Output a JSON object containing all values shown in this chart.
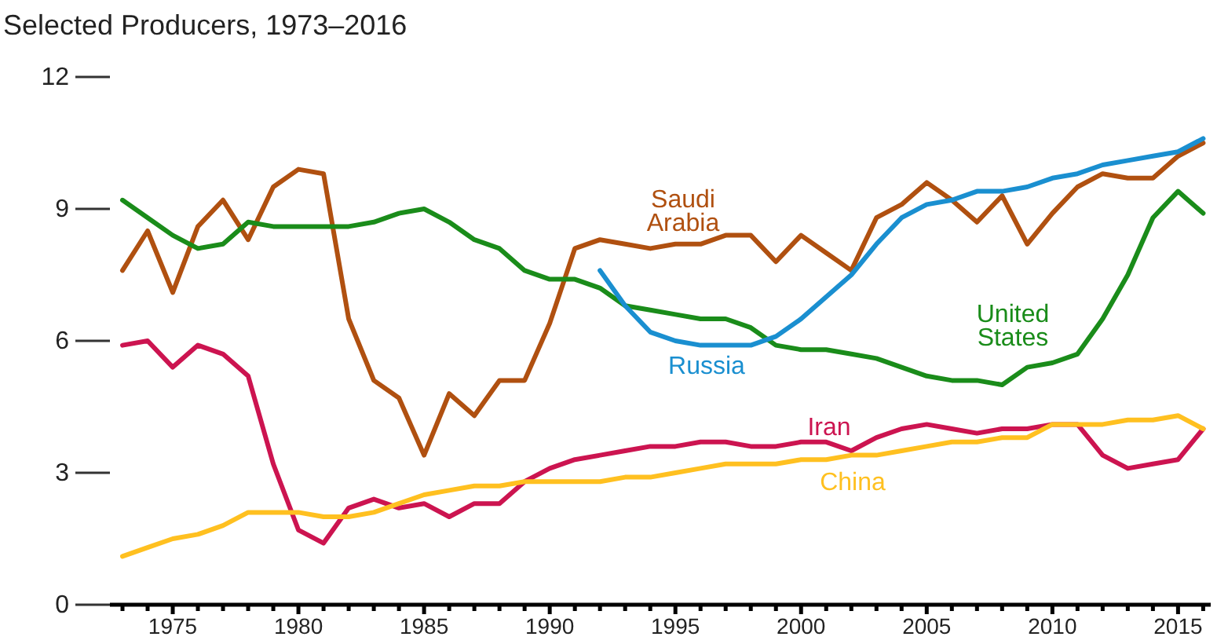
{
  "chart_data": {
    "type": "line",
    "title": "Selected Producers, 1973–2016",
    "x": [
      1973,
      1974,
      1975,
      1976,
      1977,
      1978,
      1979,
      1980,
      1981,
      1982,
      1983,
      1984,
      1985,
      1986,
      1987,
      1988,
      1989,
      1990,
      1991,
      1992,
      1993,
      1994,
      1995,
      1996,
      1997,
      1998,
      1999,
      2000,
      2001,
      2002,
      2003,
      2004,
      2005,
      2006,
      2007,
      2008,
      2009,
      2010,
      2011,
      2012,
      2013,
      2014,
      2015,
      2016
    ],
    "series": [
      {
        "name": "Saudi Arabia",
        "color": "#b05010",
        "values": [
          7.6,
          8.5,
          7.1,
          8.6,
          9.2,
          8.3,
          9.5,
          9.9,
          9.8,
          6.5,
          5.1,
          4.7,
          3.4,
          4.8,
          4.3,
          5.1,
          5.1,
          6.4,
          8.1,
          8.3,
          8.2,
          8.1,
          8.2,
          8.2,
          8.4,
          8.4,
          7.8,
          8.4,
          8.0,
          7.6,
          8.8,
          9.1,
          9.6,
          9.2,
          8.7,
          9.3,
          8.2,
          8.9,
          9.5,
          9.8,
          9.7,
          9.7,
          10.2,
          10.5
        ]
      },
      {
        "name": "United States",
        "color": "#1a8c1a",
        "values": [
          9.2,
          8.8,
          8.4,
          8.1,
          8.2,
          8.7,
          8.6,
          8.6,
          8.6,
          8.6,
          8.7,
          8.9,
          9.0,
          8.7,
          8.3,
          8.1,
          7.6,
          7.4,
          7.4,
          7.2,
          6.8,
          6.7,
          6.6,
          6.5,
          6.5,
          6.3,
          5.9,
          5.8,
          5.8,
          5.7,
          5.6,
          5.4,
          5.2,
          5.1,
          5.1,
          5.0,
          5.4,
          5.5,
          5.7,
          6.5,
          7.5,
          8.8,
          9.4,
          8.9
        ]
      },
      {
        "name": "Russia",
        "color": "#1a8fd0",
        "values": [
          null,
          null,
          null,
          null,
          null,
          null,
          null,
          null,
          null,
          null,
          null,
          null,
          null,
          null,
          null,
          null,
          null,
          null,
          null,
          7.6,
          6.8,
          6.2,
          6.0,
          5.9,
          5.9,
          5.9,
          6.1,
          6.5,
          7.0,
          7.5,
          8.2,
          8.8,
          9.1,
          9.2,
          9.4,
          9.4,
          9.5,
          9.7,
          9.8,
          10.0,
          10.1,
          10.2,
          10.3,
          10.6
        ]
      },
      {
        "name": "Iran",
        "color": "#cc1450",
        "values": [
          5.9,
          6.0,
          5.4,
          5.9,
          5.7,
          5.2,
          3.2,
          1.7,
          1.4,
          2.2,
          2.4,
          2.2,
          2.3,
          2.0,
          2.3,
          2.3,
          2.8,
          3.1,
          3.3,
          3.4,
          3.5,
          3.6,
          3.6,
          3.7,
          3.7,
          3.6,
          3.6,
          3.7,
          3.7,
          3.5,
          3.8,
          4.0,
          4.1,
          4.0,
          3.9,
          4.0,
          4.0,
          4.1,
          4.1,
          3.4,
          3.1,
          3.2,
          3.3,
          4.0
        ]
      },
      {
        "name": "China",
        "color": "#ffc020",
        "values": [
          1.1,
          1.3,
          1.5,
          1.6,
          1.8,
          2.1,
          2.1,
          2.1,
          2.0,
          2.0,
          2.1,
          2.3,
          2.5,
          2.6,
          2.7,
          2.7,
          2.8,
          2.8,
          2.8,
          2.8,
          2.9,
          2.9,
          3.0,
          3.1,
          3.2,
          3.2,
          3.2,
          3.3,
          3.3,
          3.4,
          3.4,
          3.5,
          3.6,
          3.7,
          3.7,
          3.8,
          3.8,
          4.1,
          4.1,
          4.1,
          4.2,
          4.2,
          4.3,
          4.0
        ]
      }
    ],
    "xlim": [
      1972.5,
      2016.3
    ],
    "xticks": [
      {
        "value": 1973,
        "label": null
      },
      {
        "value": 1974,
        "label": null
      },
      1975,
      {
        "value": 1976,
        "label": null
      },
      {
        "value": 1977,
        "label": null
      },
      {
        "value": 1978,
        "label": null
      },
      {
        "value": 1979,
        "label": null
      },
      1980,
      {
        "value": 1981,
        "label": null
      },
      {
        "value": 1982,
        "label": null
      },
      {
        "value": 1983,
        "label": null
      },
      {
        "value": 1984,
        "label": null
      },
      1985,
      {
        "value": 1986,
        "label": null
      },
      {
        "value": 1987,
        "label": null
      },
      {
        "value": 1988,
        "label": null
      },
      {
        "value": 1989,
        "label": null
      },
      1990,
      {
        "value": 1991,
        "label": null
      },
      {
        "value": 1992,
        "label": null
      },
      {
        "value": 1993,
        "label": null
      },
      {
        "value": 1994,
        "label": null
      },
      1995,
      {
        "value": 1996,
        "label": null
      },
      {
        "value": 1997,
        "label": null
      },
      {
        "value": 1998,
        "label": null
      },
      {
        "value": 1999,
        "label": null
      },
      2000,
      {
        "value": 2001,
        "label": null
      },
      {
        "value": 2002,
        "label": null
      },
      {
        "value": 2003,
        "label": null
      },
      {
        "value": 2004,
        "label": null
      },
      2005,
      {
        "value": 2006,
        "label": null
      },
      {
        "value": 2007,
        "label": null
      },
      {
        "value": 2008,
        "label": null
      },
      {
        "value": 2009,
        "label": null
      },
      2010,
      {
        "value": 2011,
        "label": null
      },
      {
        "value": 2012,
        "label": null
      },
      {
        "value": 2013,
        "label": null
      },
      {
        "value": 2014,
        "label": null
      },
      2015,
      {
        "value": 2016,
        "label": null
      }
    ],
    "ylim": [
      0,
      12
    ],
    "yticks": [
      0,
      3,
      6,
      9,
      12
    ],
    "grid": false,
    "legend": false,
    "marker": "none",
    "line_style": "solid"
  }
}
